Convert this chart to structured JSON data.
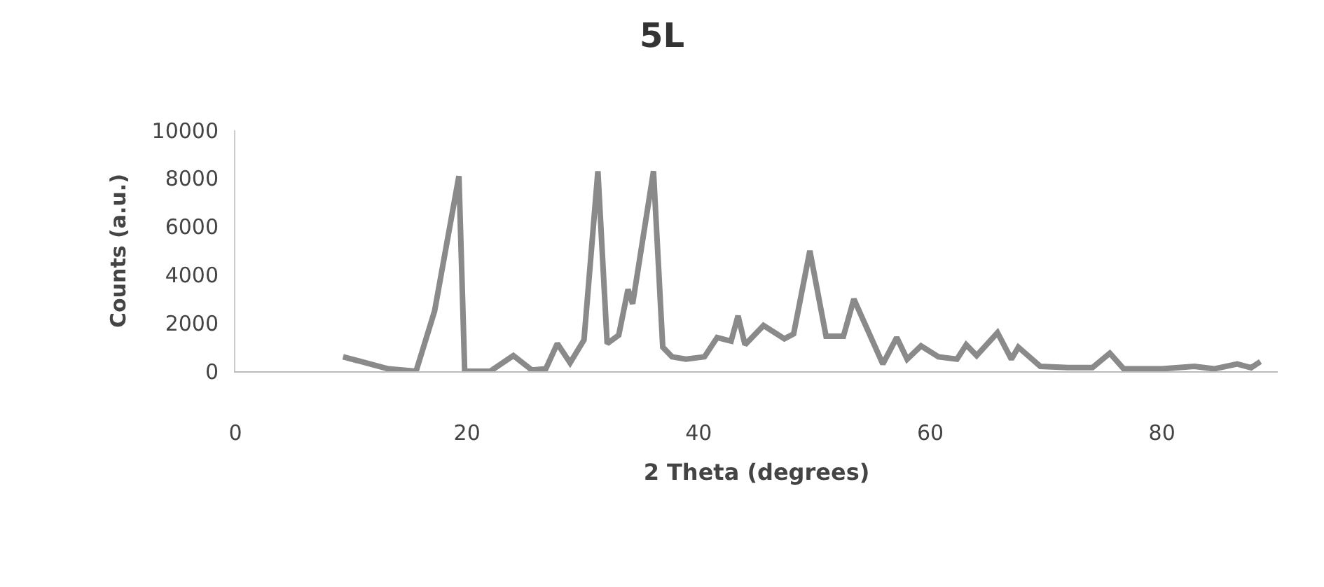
{
  "chart_data": {
    "type": "line",
    "title": "5L",
    "xlabel": "2 Theta (degrees)",
    "ylabel": "Counts (a.u.)",
    "xlim": [
      0,
      90
    ],
    "xticks": [
      0,
      20,
      40,
      60,
      80
    ],
    "ylim": [
      0,
      10000
    ],
    "yticks": [
      0,
      2000,
      4000,
      6000,
      8000,
      10000
    ],
    "series": [
      {
        "color": "#8a8a8a",
        "x": [
          9.3,
          13.2,
          15.6,
          17.2,
          19.3,
          19.8,
          22,
          24,
          25.6,
          26.8,
          27.8,
          28.9,
          30.1,
          31.3,
          32.1,
          33.1,
          33.9,
          34.3,
          36.1,
          36.9,
          37.7,
          38.9,
          40.5,
          41.6,
          42.8,
          43.4,
          44,
          45.6,
          47.4,
          48.2,
          49.6,
          51,
          52.5,
          53.4,
          55.9,
          57.1,
          58.0,
          59.2,
          60.7,
          62.3,
          63.1,
          64,
          65.8,
          67,
          67.6,
          69.5,
          71.9,
          74,
          75.5,
          76.7,
          80,
          82.8,
          84.5,
          86.5,
          87.7,
          88.5
        ],
        "values": [
          600,
          100,
          0,
          2500,
          8100,
          0,
          0,
          650,
          50,
          100,
          1150,
          350,
          1300,
          8300,
          1150,
          1500,
          3400,
          2800,
          8300,
          1000,
          600,
          500,
          600,
          1400,
          1250,
          2300,
          1100,
          1900,
          1350,
          1550,
          5000,
          1450,
          1450,
          3000,
          300,
          1400,
          500,
          1050,
          600,
          500,
          1100,
          650,
          1600,
          500,
          1000,
          200,
          150,
          150,
          750,
          100,
          100,
          200,
          100,
          300,
          150,
          400
        ]
      }
    ]
  }
}
